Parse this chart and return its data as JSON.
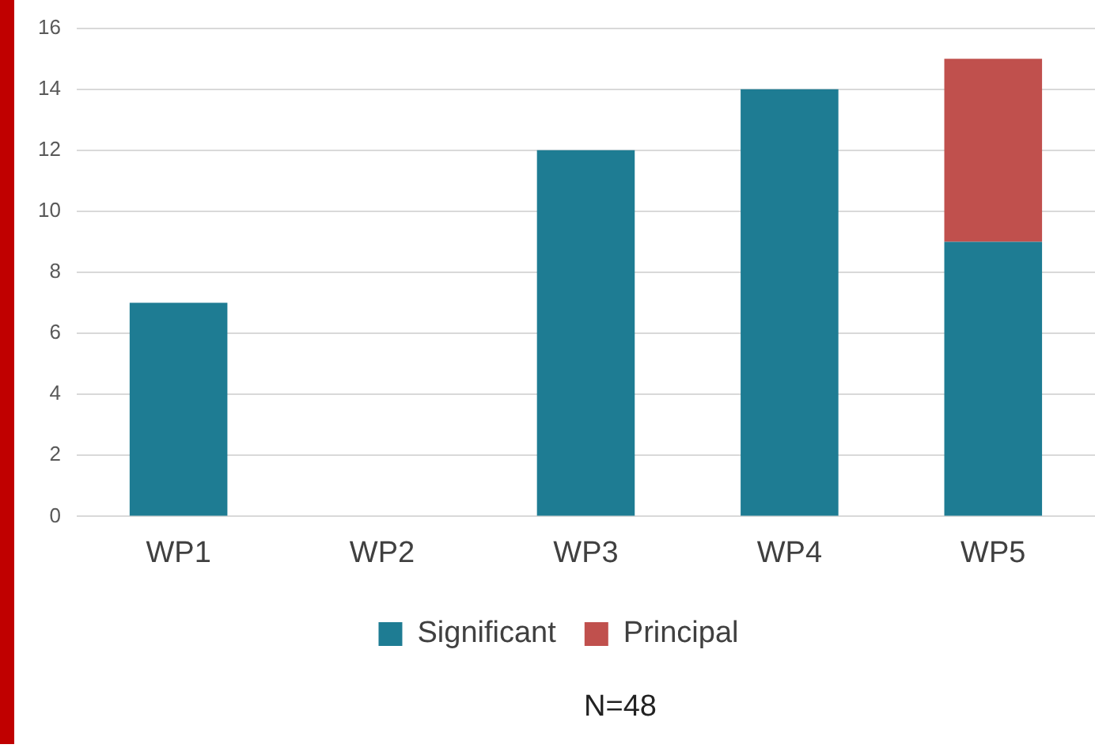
{
  "chart_data": {
    "type": "bar",
    "stacked": true,
    "categories": [
      "WP1",
      "WP2",
      "WP3",
      "WP4",
      "WP5"
    ],
    "series": [
      {
        "name": "Significant",
        "color": "#1e7c93",
        "values": [
          7,
          0,
          12,
          14,
          9
        ]
      },
      {
        "name": "Principal",
        "color": "#c0504d",
        "values": [
          0,
          0,
          0,
          0,
          6
        ]
      }
    ],
    "ylim": [
      0,
      16
    ],
    "yticks": [
      0,
      2,
      4,
      6,
      8,
      10,
      12,
      14,
      16
    ],
    "grid": "y",
    "legend": "bottom",
    "annotations": [
      "N=48"
    ]
  }
}
